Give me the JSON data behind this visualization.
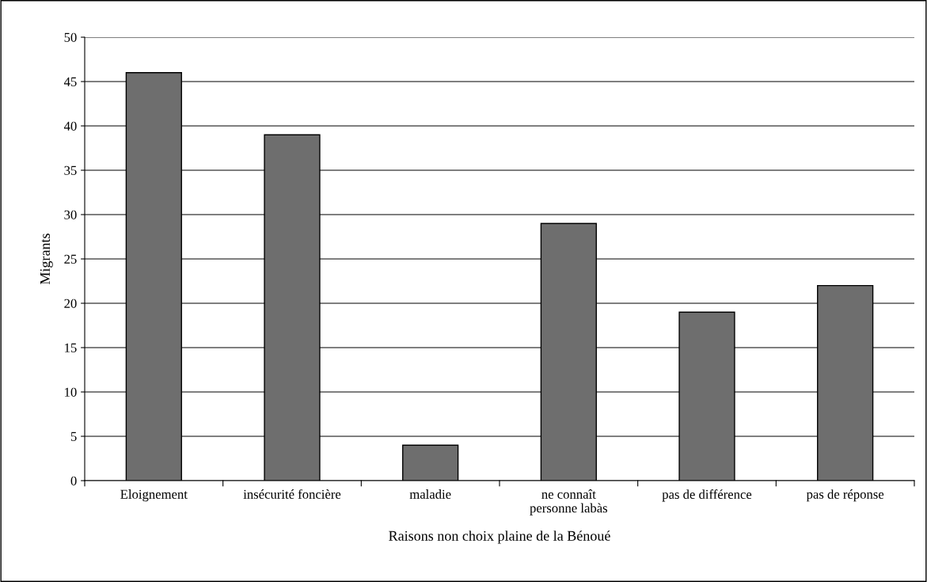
{
  "chart_data": {
    "type": "bar",
    "xlabel": "Raisons non choix plaine de la Bénoué",
    "ylabel": "Migrants",
    "categories": [
      "Eloignement",
      "insécurité foncière",
      "maladie",
      "ne connaît\npersonne labàs",
      "pas de différence",
      "pas de réponse"
    ],
    "values": [
      46,
      39,
      4,
      29,
      19,
      22
    ],
    "color": "#6e6e6e",
    "ylim": [
      0,
      50
    ],
    "yticks": [
      0,
      5,
      10,
      15,
      20,
      25,
      30,
      35,
      40,
      45,
      50
    ],
    "grid": "y",
    "legend": false
  }
}
